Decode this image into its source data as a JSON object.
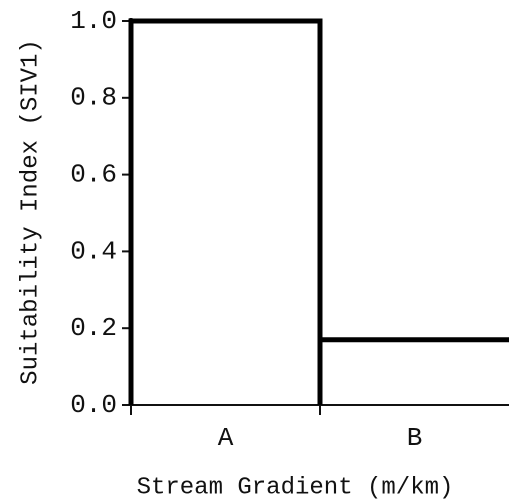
{
  "chart_data": {
    "type": "bar",
    "x_label": "Stream Gradient (m/km)",
    "y_label": "Suitability Index (SIV1)",
    "categories": [
      "A",
      "B"
    ],
    "values": [
      1.0,
      0.17
    ],
    "color": "#000000",
    "ylim": [
      0,
      1
    ],
    "yticks": [
      {
        "value": 0,
        "label": "0.0"
      },
      {
        "value": 0.2,
        "label": "0.2"
      },
      {
        "value": 0.4,
        "label": "0.4"
      },
      {
        "value": 0.6,
        "label": "0.6"
      },
      {
        "value": 0.8,
        "label": "0.8"
      },
      {
        "value": 1,
        "label": "1.0"
      }
    ],
    "grid": false
  }
}
